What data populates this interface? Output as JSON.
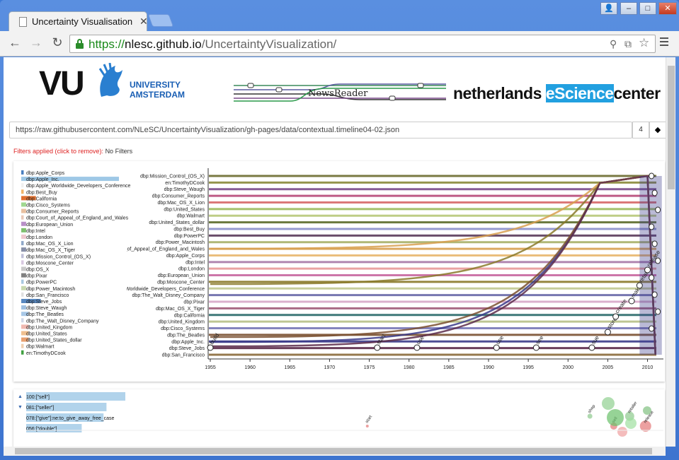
{
  "browser": {
    "tab_title": "Uncertainty Visualisation",
    "url_scheme": "https://",
    "url_host": "nlesc.github.io",
    "url_path": "/UncertaintyVisualization/"
  },
  "header": {
    "vu_logo": "VU",
    "vu_sub1": "UNIVERSITY",
    "vu_sub2": "AMSTERDAM",
    "newsreader": "NewsReader",
    "nlesc_a": "netherlands",
    "nlesc_b": "eScience",
    "nlesc_c": "center"
  },
  "controls": {
    "data_url": "https://raw.githubusercontent.com/NLeSC/UncertaintyVisualization/gh-pages/data/contextual.timeline04-02.json",
    "number": "4",
    "direction_icon": "◆",
    "filters_label": "Filters applied (click to remove):",
    "filters_value": "No Filters"
  },
  "legend": [
    {
      "label": "dbp:Apple_Corps",
      "value": 1,
      "color": "#4a7fc0"
    },
    {
      "label": "dbp:Apple_Inc.",
      "value": 40,
      "color": "#9ec8e6"
    },
    {
      "label": "dbp:Apple_Worldwide_Developers_Conference",
      "value": 1,
      "color": "#f0f0f0"
    },
    {
      "label": "dbp:Best_Buy",
      "value": 1,
      "color": "#f0b46a"
    },
    {
      "label": "dbp:California",
      "value": 6,
      "color": "#e07030"
    },
    {
      "label": "dbp:Cisco_Systems",
      "value": 2,
      "color": "#a0d890"
    },
    {
      "label": "dbp:Consumer_Reports",
      "value": 2,
      "color": "#e8c0a0"
    },
    {
      "label": "dbp:Court_of_Appeal_of_England_and_Wales",
      "value": 1,
      "color": "#e8c8b8"
    },
    {
      "label": "dbp:European_Union",
      "value": 2,
      "color": "#b890c8"
    },
    {
      "label": "dbp:Intel",
      "value": 2,
      "color": "#80c070"
    },
    {
      "label": "dbp:London",
      "value": 2,
      "color": "#f0c8d0"
    },
    {
      "label": "dbp:Mac_OS_X_Lion",
      "value": 1,
      "color": "#90a8c8"
    },
    {
      "label": "dbp:Mac_OS_X_Tiger",
      "value": 2,
      "color": "#8890a8"
    },
    {
      "label": "dbp:Mission_Control_(OS_X)",
      "value": 1,
      "color": "#c0c0d8"
    },
    {
      "label": "dbp:Moscone_Center",
      "value": 1,
      "color": "#d8c8e0"
    },
    {
      "label": "dbp:OS_X",
      "value": 2,
      "color": "#c8c8c8"
    },
    {
      "label": "dbp:Pixar",
      "value": 2,
      "color": "#808080"
    },
    {
      "label": "dbp:PowerPC",
      "value": 1,
      "color": "#a8c8e0"
    },
    {
      "label": "dbp:Power_Macintosh",
      "value": 2,
      "color": "#c8d8b0"
    },
    {
      "label": "dbp:San_Francisco",
      "value": 1,
      "color": "#e0e0e0"
    },
    {
      "label": "dbp:Steve_Jobs",
      "value": 8,
      "color": "#5888c0"
    },
    {
      "label": "dbp:Steve_Waugh",
      "value": 2,
      "color": "#a0c0e0"
    },
    {
      "label": "dbp:The_Beatles",
      "value": 3,
      "color": "#a8c8e8"
    },
    {
      "label": "dbp:The_Walt_Disney_Company",
      "value": 1,
      "color": "#d0d8e8"
    },
    {
      "label": "dbp:United_Kingdom",
      "value": 3,
      "color": "#f0b8b0"
    },
    {
      "label": "dbp:United_States",
      "value": 3,
      "color": "#f0c090"
    },
    {
      "label": "dbp:United_States_dollar",
      "value": 3,
      "color": "#e8a070"
    },
    {
      "label": "dbp:Walmart",
      "value": 1,
      "color": "#f0d0b0"
    },
    {
      "label": "en:TimothyDCook",
      "value": 1,
      "color": "#40a040"
    }
  ],
  "chart_data": {
    "type": "line",
    "title": "",
    "xlabel": "",
    "ylabel": "",
    "xlim": [
      1955,
      2012
    ],
    "x_ticks": [
      1955,
      1960,
      1965,
      1970,
      1975,
      1980,
      1985,
      1990,
      1995,
      2000,
      2005,
      2010
    ],
    "series": [
      {
        "name": "dbp:Mission_Control_(OS_X)",
        "color": "#6b6b2e"
      },
      {
        "name": "en:TimothyDCook",
        "color": "#8a8a3a"
      },
      {
        "name": "dbp:Steve_Waugh",
        "color": "#7a4a8a"
      },
      {
        "name": "dbp:Consumer_Reports",
        "color": "#b84a78"
      },
      {
        "name": "dbp:Mac_OS_X_Lion",
        "color": "#d86a6a"
      },
      {
        "name": "dbp:United_States",
        "color": "#9cba5a"
      },
      {
        "name": "dbp:Walmart",
        "color": "#b8c87a"
      },
      {
        "name": "dbp:United_States_dollar",
        "color": "#5a6a2a"
      },
      {
        "name": "dbp:Best_Buy",
        "color": "#8a90cc"
      },
      {
        "name": "dbp:PowerPC",
        "color": "#5a3a5a"
      },
      {
        "name": "dbp:Power_Macintosh",
        "color": "#a8b068"
      },
      {
        "name": "dbp:Court_of_Appeal_of_England_and_Wales",
        "color": "#d8a050"
      },
      {
        "name": "dbp:Apple_Corps",
        "color": "#e8b870"
      },
      {
        "name": "dbp:Intel",
        "color": "#a878a8"
      },
      {
        "name": "dbp:London",
        "color": "#e89898"
      },
      {
        "name": "dbp:European_Union",
        "color": "#c868a0"
      },
      {
        "name": "dbp:Moscone_Center",
        "color": "#8a7a2a"
      },
      {
        "name": "dbp:Apple_Worldwide_Developers_Conference",
        "color": "#c0c890"
      },
      {
        "name": "dbp:The_Walt_Disney_Company",
        "color": "#6868a8"
      },
      {
        "name": "dbp:Pixar",
        "color": "#d8a8c8"
      },
      {
        "name": "dbp:Mac_OS_X_Tiger",
        "color": "#a05a78"
      },
      {
        "name": "dbp:California",
        "color": "#2a6a6a"
      },
      {
        "name": "dbp:United_Kingdom",
        "color": "#b8c088"
      },
      {
        "name": "dbp:Cisco_Systems",
        "color": "#7878b8"
      },
      {
        "name": "dbp:The_Beatles",
        "color": "#7a5030"
      },
      {
        "name": "dbp:Apple_Inc.",
        "color": "#3a3a8a"
      },
      {
        "name": "dbp:Steve_Jobs",
        "color": "#5a2a4a"
      },
      {
        "name": "dbp:San_Francisco",
        "color": "#8a6a3a"
      }
    ],
    "events": [
      {
        "label": "build",
        "x": 1955
      },
      {
        "label": "start",
        "x": 1976
      },
      {
        "label": "use",
        "x": 1981
      },
      {
        "label": "use",
        "x": 1991
      },
      {
        "label": "see",
        "x": 1996
      },
      {
        "label": "sue",
        "x": 2003
      },
      {
        "label": "store",
        "x": 2005
      },
      {
        "label": "create",
        "x": 2006
      },
      {
        "label": "make",
        "x": 2008
      },
      {
        "label": "retailer",
        "x": 2009
      },
      {
        "label": "release",
        "x": 2010
      }
    ]
  },
  "bottom_panel": {
    "rows": [
      {
        "label": "100:[\"sell\"]",
        "value": 100
      },
      {
        "label": "081:[\"seller\"]",
        "value": 81
      },
      {
        "label": "078:[\"give\"]:ne:to_give_away_free_case",
        "value": 78
      },
      {
        "label": "056:[\"double\"]",
        "value": 56
      }
    ],
    "event_labels": [
      "start",
      "shop",
      "sell",
      "retailer",
      "release"
    ]
  }
}
